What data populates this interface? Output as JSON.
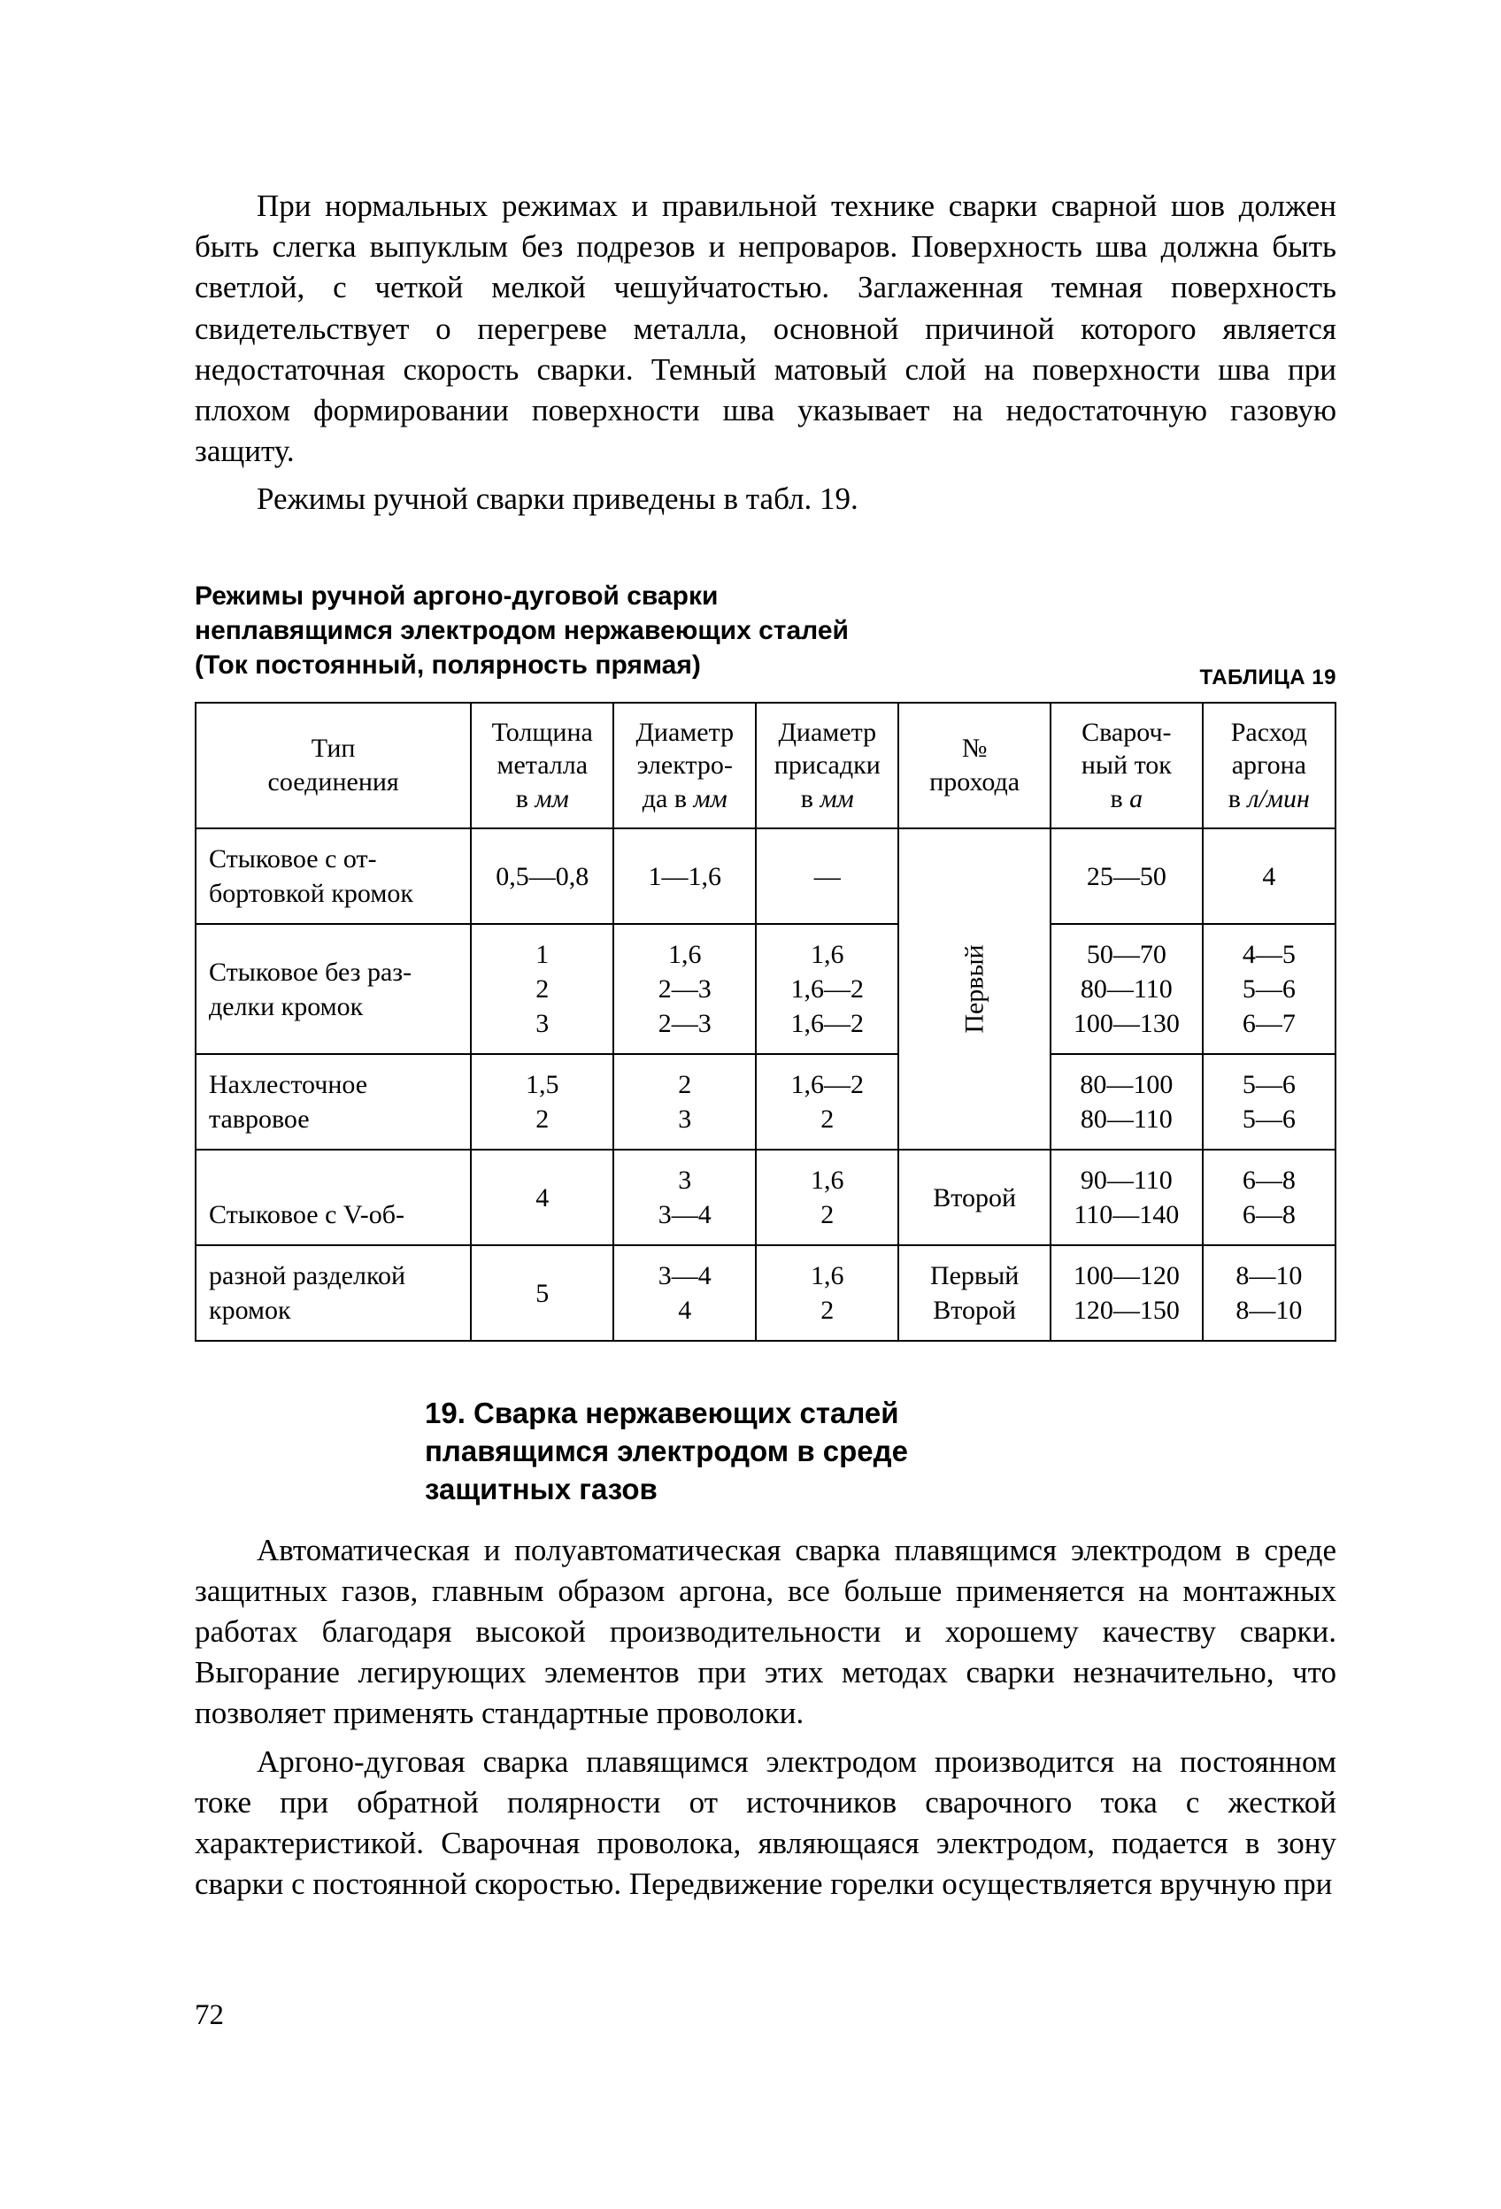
{
  "paragraphs": {
    "p1": "При нормальных режимах и правильной технике сварки сварной шов должен быть слегка выпуклым без подрезов и непроваров. Поверхность шва должна быть светлой, с четкой мелкой чешуйчатостью. Заглаженная темная поверхность свидетельствует о перегреве металла, основной причиной которого является недостаточная скорость сварки. Темный матовый слой на поверхности шва при плохом формировании поверхности шва указывает на недостаточную газовую защиту.",
    "p2": "Режимы ручной сварки приведены в табл. 19.",
    "p3": "Автоматическая и полуавтоматическая сварка плавящимся электродом в среде защитных газов, главным образом аргона, все больше применяется на монтажных работах благодаря высокой производительности и хорошему качеству сварки. Выгорание легирующих элементов при этих методах сварки незначительно, что позволяет применять стандартные проволоки.",
    "p4": "Аргоно-дуговая сварка плавящимся электродом производится на постоянном токе при обратной полярности от источников сварочного тока с жесткой характеристикой. Сварочная проволока, являющаяся электродом, подается в зону сварки с постоянной скоростью. Передвижение горелки осуществляется вручную при"
  },
  "table_label": "ТАБЛИЦА 19",
  "table_caption_l1": "Режимы ручной аргоно-дуговой сварки",
  "table_caption_l2": "неплавящимся электродом нержавеющих сталей",
  "table_caption_l3": "(Ток постоянный, полярность прямая)",
  "headers": {
    "h1": "Тип\nсоединения",
    "h2_a": "Толщина",
    "h2_b": "металла",
    "h2_c": "в ",
    "h2_unit": "мм",
    "h3_a": "Диаметр",
    "h3_b": "электро-",
    "h3_c": "да в ",
    "h3_unit": "мм",
    "h4_a": "Диаметр",
    "h4_b": "присадки",
    "h4_c": "в ",
    "h4_unit": "мм",
    "h5_a": "№",
    "h5_b": "прохода",
    "h6_a": "Свароч-",
    "h6_b": "ный ток",
    "h6_c": "в ",
    "h6_unit": "а",
    "h7_a": "Расход",
    "h7_b": "аргона",
    "h7_c": "в ",
    "h7_unit": "л/мин"
  },
  "rows": {
    "r1": {
      "type": "Стыковое с от­бортовкой кромок",
      "thick": "0,5—0,8",
      "elec": "1—1,6",
      "fill": "—",
      "cur": "25—50",
      "gas": "4"
    },
    "r2": {
      "type": "Стыковое без раз­делки кромок",
      "thick": "1\n2\n3",
      "elec": "1,6\n2—3\n2—3",
      "fill": "1,6\n1,6—2\n1,6—2",
      "cur": "50—70\n80—110\n100—130",
      "gas": "4—5\n5—6\n6—7"
    },
    "pass_first": "Первый",
    "r3": {
      "type": "Нахлесточное тавровое",
      "thick": "1,5\n2",
      "elec": "2\n3",
      "fill": "1,6—2\n2",
      "cur": "80—100\n80—110",
      "gas": "5—6\n5—6"
    },
    "r4type_l1": "Стыковое с V-об-",
    "r4type_l2": "разной разделкой кромок",
    "r4a": {
      "thick": "4",
      "elec": "3\n3—4",
      "fill": "1,6\n2",
      "pass": "Второй",
      "cur": "90—110\n110—140",
      "gas": "6—8\n6—8"
    },
    "r4b": {
      "thick": "5",
      "elec": "3—4\n4",
      "fill": "1,6\n2",
      "pass": "Первый\nВторой",
      "cur": "100—120\n120—150",
      "gas": "8—10\n8—10"
    }
  },
  "section_heading_l1": "19. Сварка нержавеющих сталей",
  "section_heading_l2": "плавящимся электродом в среде",
  "section_heading_l3": "защитных газов",
  "page_number": "72",
  "col_widths": {
    "c1": "290",
    "c2": "150",
    "c3": "150",
    "c4": "150",
    "c5": "160",
    "c6": "160",
    "c7": "140"
  }
}
